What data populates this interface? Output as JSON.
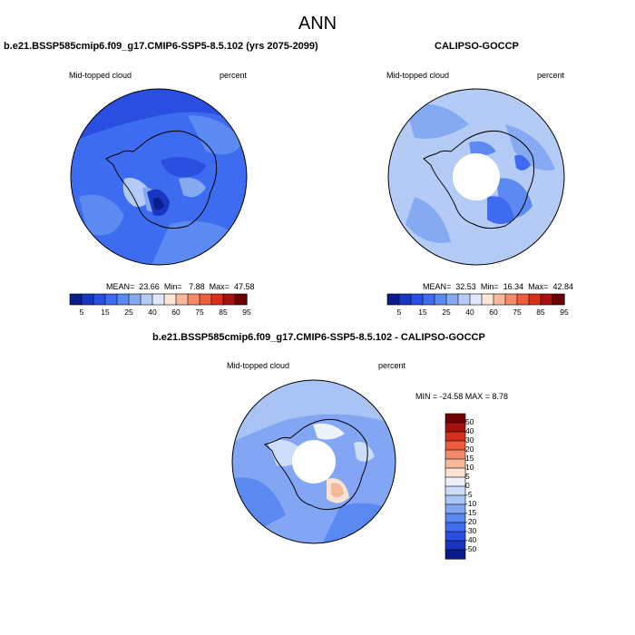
{
  "page": {
    "title": "ANN"
  },
  "panels": {
    "model": {
      "title": "b.e21.BSSP585cmip6.f09_g17.CMIP6-SSP5-8.5.102 (yrs 2075-2099)",
      "variable": "Mid-topped cloud",
      "units": "percent",
      "stats": {
        "mean_label": "MEAN=",
        "mean": "23.66",
        "min_label": "Min=",
        "min": "7.88",
        "max_label": "Max=",
        "max": "47.58"
      }
    },
    "obs": {
      "title": "CALIPSO-GOCCP",
      "variable": "Mid-topped cloud",
      "units": "percent",
      "stats": {
        "mean_label": "MEAN=",
        "mean": "32.53",
        "min_label": "Min=",
        "min": "16.34",
        "max_label": "Max=",
        "max": "42.84"
      }
    },
    "diff": {
      "title": "b.e21.BSSP585cmip6.f09_g17.CMIP6-SSP5-8.5.102 - CALIPSO-GOCCP",
      "variable": "Mid-topped cloud",
      "units": "percent",
      "minmax_text": "MIN = -24.58 MAX =   8.78"
    }
  },
  "colors": {
    "abs_scale": [
      "#0b1d8c",
      "#1836c2",
      "#2a4fe0",
      "#3d6cf0",
      "#5c8af2",
      "#86aaf2",
      "#b4ccf5",
      "#dfe9fb",
      "#fce7d6",
      "#f9b79b",
      "#f5896a",
      "#ef5d3d",
      "#d9301b",
      "#a81010",
      "#6b0000"
    ],
    "diff_scale": [
      "#0a1a8a",
      "#1a33c0",
      "#2a4fe0",
      "#3e6df0",
      "#5b89f2",
      "#82a6f3",
      "#a9c3f5",
      "#cddcf8",
      "#ecf1fb",
      "#fbe3d3",
      "#f7b79b",
      "#f28a69",
      "#ea5c3d",
      "#d42f1c",
      "#a80f0f",
      "#700000"
    ],
    "coast": "#000000"
  },
  "chart_data": [
    {
      "type": "heatmap",
      "title": "b.e21.BSSP585cmip6.f09_g17.CMIP6-SSP5-8.5.102 (yrs 2075-2099)",
      "projection": "south-polar stereographic",
      "variable": "Mid-topped cloud",
      "units": "percent",
      "colorbar_ticks": [
        "5",
        "15",
        "25",
        "40",
        "60",
        "75",
        "85",
        "95"
      ],
      "mean": 23.66,
      "min": 7.88,
      "max": 47.58
    },
    {
      "type": "heatmap",
      "title": "CALIPSO-GOCCP",
      "projection": "south-polar stereographic",
      "variable": "Mid-topped cloud",
      "units": "percent",
      "colorbar_ticks": [
        "5",
        "15",
        "25",
        "40",
        "60",
        "75",
        "85",
        "95"
      ],
      "mean": 32.53,
      "min": 16.34,
      "max": 42.84
    },
    {
      "type": "heatmap",
      "title": "b.e21.BSSP585cmip6.f09_g17.CMIP6-SSP5-8.5.102 - CALIPSO-GOCCP",
      "projection": "south-polar stereographic",
      "variable": "Mid-topped cloud",
      "units": "percent",
      "colorbar_ticks": [
        "50",
        "40",
        "30",
        "20",
        "15",
        "10",
        "5",
        "0",
        "-5",
        "-10",
        "-15",
        "-20",
        "-30",
        "-40",
        "-50"
      ],
      "min": -24.58,
      "max": 8.78
    }
  ]
}
